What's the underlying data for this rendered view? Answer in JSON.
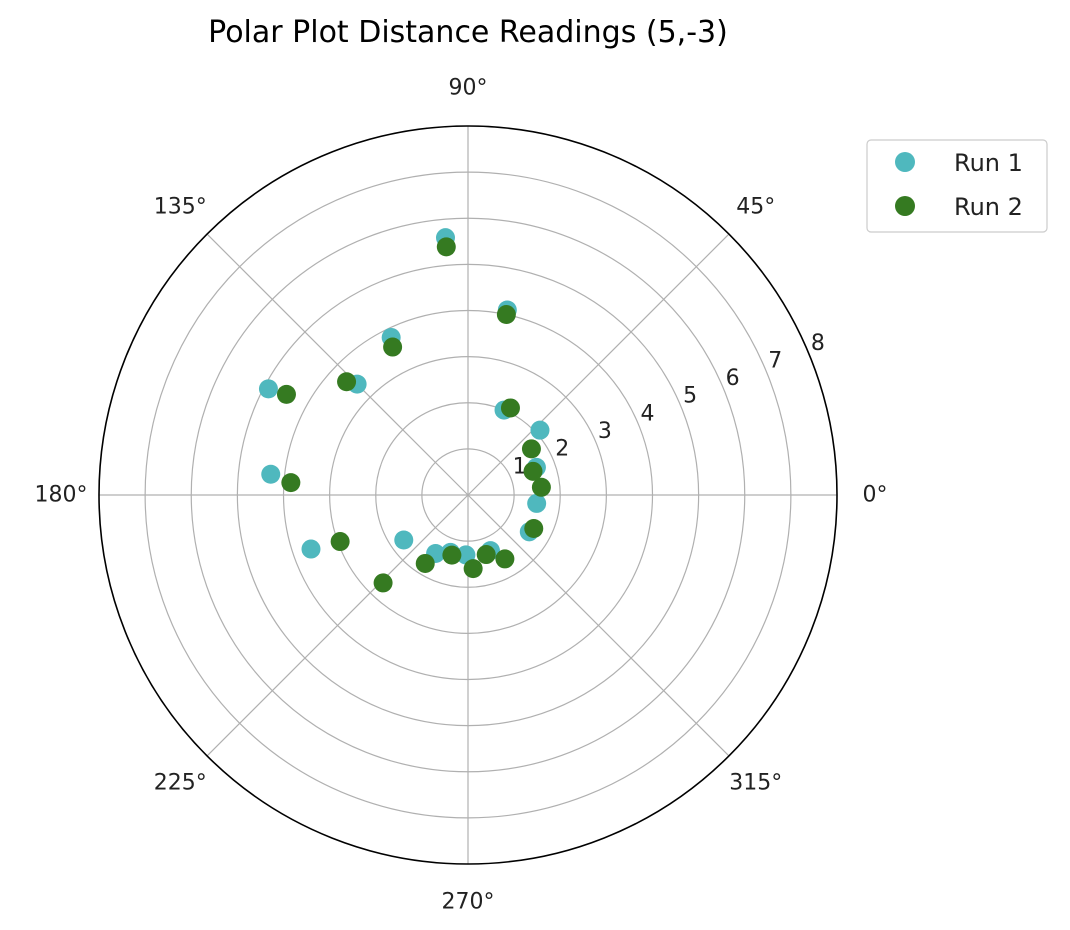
{
  "chart_data": {
    "type": "scatter",
    "projection": "polar",
    "title": "Polar Plot Distance Readings (5,-3)",
    "theta_unit": "degrees",
    "theta_ticks": [
      "0°",
      "45°",
      "90°",
      "135°",
      "180°",
      "225°",
      "270°",
      "315°"
    ],
    "theta_tick_values": [
      0,
      45,
      90,
      135,
      180,
      225,
      270,
      315
    ],
    "r_ticks": [
      "1",
      "2",
      "3",
      "4",
      "5",
      "6",
      "7",
      "8"
    ],
    "r_tick_values": [
      1,
      2,
      3,
      4,
      5,
      6,
      7,
      8
    ],
    "rlim": [
      0,
      8
    ],
    "r_label_angle": 22.5,
    "grid": true,
    "legend": "upper-right-outside",
    "series": [
      {
        "name": "Run 1",
        "color": "#4fb8be",
        "points": [
          {
            "theta": 95.0,
            "r": 5.6
          },
          {
            "theta": 78.0,
            "r": 4.1
          },
          {
            "theta": 116.0,
            "r": 3.8
          },
          {
            "theta": 135.0,
            "r": 3.4
          },
          {
            "theta": 152.0,
            "r": 4.9
          },
          {
            "theta": 174.0,
            "r": 4.3
          },
          {
            "theta": 199.0,
            "r": 3.6
          },
          {
            "theta": 215.0,
            "r": 1.7
          },
          {
            "theta": 241.0,
            "r": 1.45
          },
          {
            "theta": 253.0,
            "r": 1.3
          },
          {
            "theta": 268.0,
            "r": 1.3
          },
          {
            "theta": 292.0,
            "r": 1.3
          },
          {
            "theta": 329.0,
            "r": 1.55
          },
          {
            "theta": 353.0,
            "r": 1.5
          },
          {
            "theta": 22.0,
            "r": 1.6
          },
          {
            "theta": 42.0,
            "r": 2.1
          },
          {
            "theta": 67.0,
            "r": 2.0
          }
        ]
      },
      {
        "name": "Run 2",
        "color": "#357a21",
        "points": [
          {
            "theta": 95.0,
            "r": 5.4
          },
          {
            "theta": 78.0,
            "r": 4.0
          },
          {
            "theta": 117.0,
            "r": 3.6
          },
          {
            "theta": 137.0,
            "r": 3.6
          },
          {
            "theta": 151.0,
            "r": 4.5
          },
          {
            "theta": 176.0,
            "r": 3.85
          },
          {
            "theta": 200.0,
            "r": 2.95
          },
          {
            "theta": 226.0,
            "r": 2.65
          },
          {
            "theta": 238.0,
            "r": 1.75
          },
          {
            "theta": 255.0,
            "r": 1.35
          },
          {
            "theta": 274.0,
            "r": 1.6
          },
          {
            "theta": 287.0,
            "r": 1.35
          },
          {
            "theta": 300.0,
            "r": 1.6
          },
          {
            "theta": 333.0,
            "r": 1.6
          },
          {
            "theta": 6.0,
            "r": 1.6
          },
          {
            "theta": 20.0,
            "r": 1.5
          },
          {
            "theta": 36.0,
            "r": 1.7
          },
          {
            "theta": 64.0,
            "r": 2.1
          }
        ]
      }
    ]
  }
}
